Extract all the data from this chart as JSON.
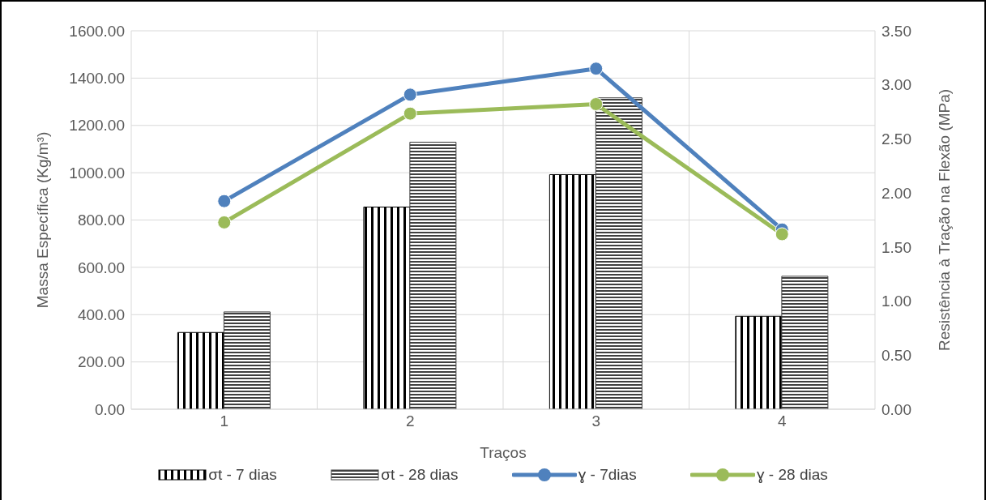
{
  "chart_data": {
    "type": "bar",
    "xlabel": "Traços",
    "ylabel": "Massa Específica (Kg/m³)",
    "y2label": "Resistência à Tração na Flexão (MPa)",
    "categories": [
      "1",
      "2",
      "3",
      "4"
    ],
    "series": [
      {
        "name": "σt - 7 dias",
        "axis": "y2",
        "color": "#000000",
        "values": [
          0.71,
          1.87,
          2.17,
          0.86
        ]
      },
      {
        "name": "σt - 28 dias",
        "axis": "y2",
        "color": "#404040",
        "values": [
          0.9,
          2.47,
          2.88,
          1.23
        ]
      },
      {
        "name": "ɣ - 7dias",
        "type": "line",
        "axis": "y",
        "color": "#4f81bd",
        "values": [
          880,
          1330,
          1440,
          760
        ]
      },
      {
        "name": "ɣ - 28 dias",
        "type": "line",
        "axis": "y",
        "color": "#9bbb59",
        "values": [
          790,
          1250,
          1290,
          740
        ]
      }
    ],
    "ylim": [
      0,
      1600
    ],
    "yticks": [
      {
        "value": 0,
        "label": "0.00"
      },
      {
        "value": 200,
        "label": "200.00"
      },
      {
        "value": 400,
        "label": "400.00"
      },
      {
        "value": 600,
        "label": "600.00"
      },
      {
        "value": 800,
        "label": "800.00"
      },
      {
        "value": 1000,
        "label": "1000.00"
      },
      {
        "value": 1200,
        "label": "1200.00"
      },
      {
        "value": 1400,
        "label": "1400.00"
      },
      {
        "value": 1600,
        "label": "1600.00"
      }
    ],
    "y2lim": [
      0,
      3.5
    ],
    "y2ticks": [
      {
        "value": 0,
        "label": "0.00"
      },
      {
        "value": 0.5,
        "label": "0.50"
      },
      {
        "value": 1,
        "label": "1.00"
      },
      {
        "value": 1.5,
        "label": "1.50"
      },
      {
        "value": 2,
        "label": "2.00"
      },
      {
        "value": 2.5,
        "label": "2.50"
      },
      {
        "value": 3,
        "label": "3.00"
      },
      {
        "value": 3.5,
        "label": "3.50"
      }
    ],
    "grid": true,
    "legend": "bottom",
    "marker": "circle",
    "line_style": "solid"
  }
}
